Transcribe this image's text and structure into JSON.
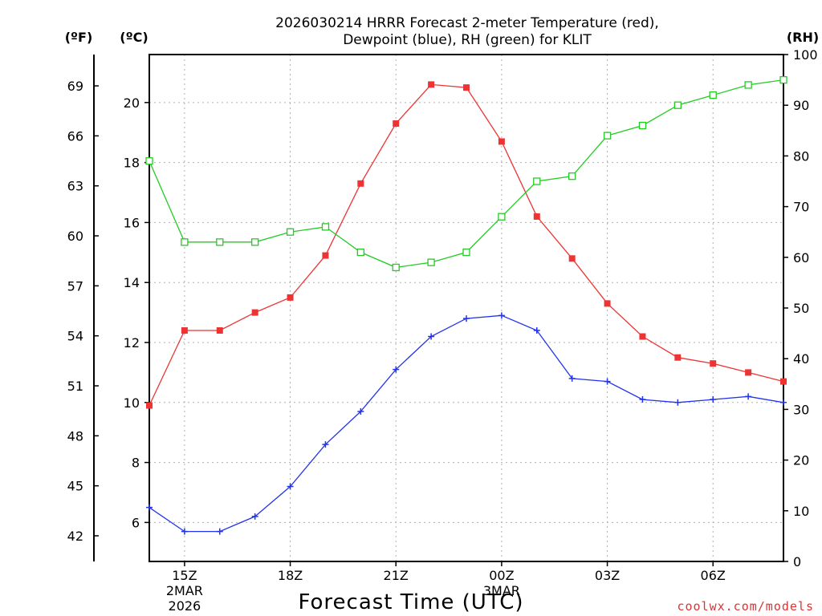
{
  "chart_data": {
    "type": "line",
    "title_line1": "2026030214 HRRR Forecast 2-meter Temperature (red),",
    "title_line2": "Dewpoint (blue), RH (green) for KLIT",
    "xlabel": "Forecast Time (UTC)",
    "credit": "coolwx.com/models",
    "units": {
      "fahrenheit": "(ºF)",
      "celsius": "(ºC)",
      "rh": "(RH)"
    },
    "x_hours": [
      14,
      15,
      16,
      17,
      18,
      19,
      20,
      21,
      22,
      23,
      24,
      25,
      26,
      27,
      28,
      29,
      30,
      31,
      32
    ],
    "xlim": [
      14,
      32
    ],
    "x_ticks": [
      {
        "hour": 15,
        "label": "15Z",
        "sub1": "2MAR",
        "sub2": "2026"
      },
      {
        "hour": 18,
        "label": "18Z"
      },
      {
        "hour": 21,
        "label": "21Z"
      },
      {
        "hour": 24,
        "label": "00Z",
        "sub1": "3MAR"
      },
      {
        "hour": 27,
        "label": "03Z"
      },
      {
        "hour": 30,
        "label": "06Z"
      }
    ],
    "celsius_axis": {
      "ylim": [
        4.7,
        21.6
      ],
      "ticks": [
        "6",
        "8",
        "10",
        "12",
        "14",
        "16",
        "18",
        "20"
      ]
    },
    "fahrenheit_axis": {
      "ticks": [
        "42",
        "45",
        "48",
        "51",
        "54",
        "57",
        "60",
        "63",
        "66",
        "69"
      ]
    },
    "rh_axis": {
      "ylim": [
        0,
        100
      ],
      "ticks": [
        "0",
        "10",
        "20",
        "30",
        "40",
        "50",
        "60",
        "70",
        "80",
        "90",
        "100"
      ]
    },
    "series": [
      {
        "name": "Temperature",
        "unit": "C",
        "color": "#ee3333",
        "marker": "filled-square",
        "values": [
          9.9,
          12.4,
          12.4,
          13.0,
          13.5,
          14.9,
          17.3,
          19.3,
          20.6,
          20.5,
          18.7,
          16.2,
          14.8,
          13.3,
          12.2,
          11.5,
          11.3,
          11.0,
          10.7
        ]
      },
      {
        "name": "Dewpoint",
        "unit": "C",
        "color": "#2233ee",
        "marker": "plus",
        "values": [
          6.5,
          5.7,
          5.7,
          6.2,
          7.2,
          8.6,
          9.7,
          11.1,
          12.2,
          12.8,
          12.9,
          12.4,
          10.8,
          10.7,
          10.1,
          10.0,
          10.1,
          10.2,
          10.0
        ]
      },
      {
        "name": "RH",
        "unit": "%",
        "color": "#22cc22",
        "marker": "open-square",
        "values": [
          79,
          63,
          63,
          63,
          65,
          66,
          61,
          58,
          59,
          61,
          68,
          75,
          76,
          84,
          86,
          90,
          92,
          94,
          95
        ]
      }
    ]
  }
}
